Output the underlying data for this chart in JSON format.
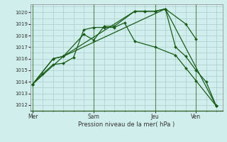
{
  "bg_color": "#d0eeec",
  "grid_color": "#aacccc",
  "line_color": "#1a5c1a",
  "marker_color": "#1a5c1a",
  "xlabel": "Pression niveau de la mer( hPa )",
  "ylim": [
    1011.5,
    1020.7
  ],
  "yticks": [
    1012,
    1013,
    1014,
    1015,
    1016,
    1017,
    1018,
    1019,
    1020
  ],
  "xtick_labels": [
    "Mer",
    "Sam",
    "Jeu",
    "Ven"
  ],
  "xtick_positions": [
    0,
    3,
    6,
    8
  ],
  "series": [
    [
      1013.8,
      1014.7,
      1015.5,
      1015.6,
      1016.1,
      1018.5,
      1018.7,
      1018.7,
      1018.7,
      1019.1,
      1017.5,
      1017.0,
      1016.3,
      1015.2,
      1014.1,
      1011.9
    ],
    [
      1013.8,
      1016.0,
      1016.2,
      1018.1,
      1017.6,
      1018.8,
      1018.8,
      1020.1,
      1020.1,
      1020.1,
      1020.3,
      1019.0,
      1017.7
    ],
    [
      1013.8,
      1016.0,
      1016.2,
      1020.1,
      1020.1,
      1020.1,
      1020.3,
      1017.0,
      1016.2,
      1015.0,
      1014.0,
      1011.9
    ],
    [
      1013.8,
      1016.2,
      1020.3,
      1011.9
    ]
  ],
  "series_x": [
    [
      0,
      0.5,
      1.0,
      1.5,
      2.0,
      2.5,
      3.0,
      3.5,
      4.0,
      4.5,
      5.0,
      6.0,
      7.0,
      7.5,
      8.0,
      9.0
    ],
    [
      0,
      1.0,
      1.5,
      2.5,
      3.0,
      3.5,
      4.0,
      5.0,
      5.5,
      6.0,
      6.5,
      7.5,
      8.0
    ],
    [
      0,
      1.0,
      1.5,
      5.0,
      5.5,
      6.0,
      6.5,
      7.0,
      7.5,
      8.0,
      8.5,
      9.0
    ],
    [
      0,
      1.5,
      6.5,
      9.0
    ]
  ],
  "vline_positions": [
    0,
    3,
    6,
    8
  ],
  "vline_color": "#558855",
  "xlim": [
    -0.1,
    9.3
  ]
}
